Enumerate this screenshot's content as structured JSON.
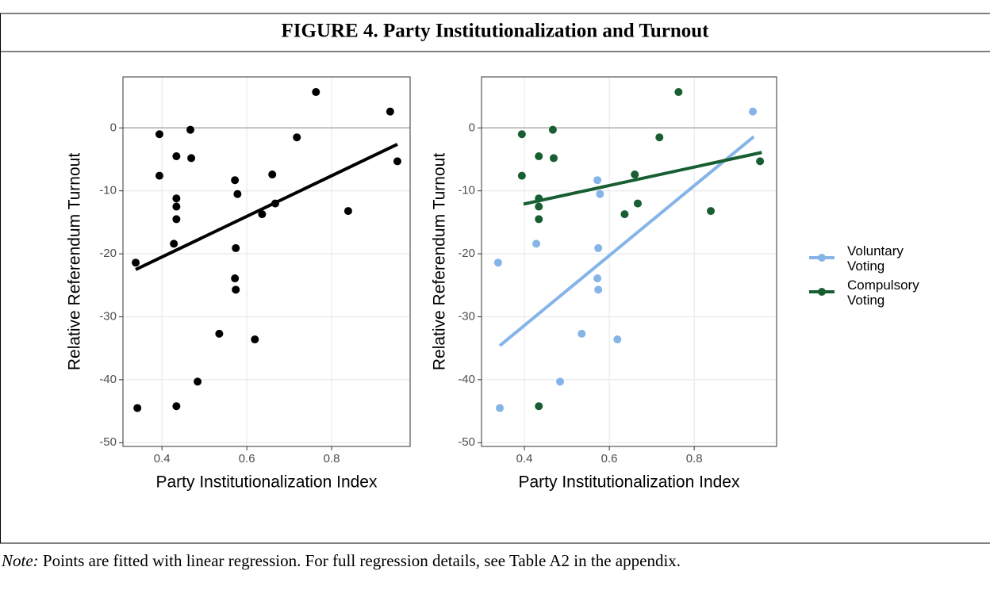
{
  "title": "FIGURE 4. Party Institutionalization and Turnout",
  "note_label": "Note:",
  "note": "Points are fitted with linear regression. For full regression details, see Table A2 in the appendix.",
  "chart_data": [
    {
      "type": "scatter",
      "x_label": "Party Institutionalization Index",
      "y_label": "Relative Referendum Turnout",
      "xlim": [
        0.308,
        0.985
      ],
      "ylim": [
        -50.6,
        8.1
      ],
      "xticks": [
        0.4,
        0.6,
        0.8
      ],
      "yticks": [
        0,
        -10,
        -20,
        -30,
        -40,
        -50
      ],
      "grid": true,
      "hline": 0,
      "series": [
        {
          "color": "#000000",
          "x": [
            0.338,
            0.342,
            0.394,
            0.394,
            0.467,
            0.469,
            0.434,
            0.434,
            0.434,
            0.434,
            0.428,
            0.434,
            0.484,
            0.535,
            0.572,
            0.578,
            0.574,
            0.572,
            0.574,
            0.619,
            0.636,
            0.66,
            0.667,
            0.718,
            0.763,
            0.839,
            0.938,
            0.955
          ],
          "values": [
            -21.4,
            -44.5,
            -1.0,
            -7.6,
            -0.3,
            -4.8,
            -4.5,
            -11.2,
            -12.5,
            -14.5,
            -18.4,
            -44.2,
            -40.3,
            -32.7,
            -8.3,
            -10.5,
            -19.1,
            -23.9,
            -25.7,
            -33.6,
            -13.7,
            -7.4,
            -12.0,
            -1.5,
            5.7,
            -13.2,
            2.6,
            -5.3
          ],
          "fit": {
            "x": [
              0.338,
              0.955
            ],
            "values": [
              -22.5,
              -2.6
            ]
          }
        }
      ]
    },
    {
      "type": "scatter",
      "x_label": "Party Institutionalization Index",
      "y_label": "Relative Referendum Turnout",
      "xlim": [
        0.299,
        0.994
      ],
      "ylim": [
        -50.6,
        8.1
      ],
      "xticks": [
        0.4,
        0.6,
        0.8
      ],
      "yticks": [
        0,
        -10,
        -20,
        -30,
        -40,
        -50
      ],
      "grid": true,
      "hline": 0,
      "legend": "right",
      "series": [
        {
          "name": "Voluntary Voting",
          "color": "#85b4e8",
          "x": [
            0.338,
            0.342,
            0.428,
            0.572,
            0.578,
            0.574,
            0.572,
            0.574,
            0.484,
            0.535,
            0.619,
            0.938
          ],
          "values": [
            -21.4,
            -44.5,
            -18.4,
            -8.3,
            -10.5,
            -19.1,
            -23.9,
            -25.7,
            -40.3,
            -32.7,
            -33.6,
            2.6
          ],
          "fit": {
            "x": [
              0.342,
              0.94
            ],
            "values": [
              -34.6,
              -1.4
            ]
          }
        },
        {
          "name": "Compulsory Voting",
          "color": "#175e32",
          "x": [
            0.394,
            0.394,
            0.467,
            0.469,
            0.434,
            0.434,
            0.434,
            0.434,
            0.434,
            0.636,
            0.66,
            0.667,
            0.718,
            0.763,
            0.839,
            0.955
          ],
          "values": [
            -1.0,
            -7.6,
            -0.3,
            -4.8,
            -4.5,
            -11.2,
            -12.5,
            -14.5,
            -44.2,
            -13.7,
            -7.4,
            -12.0,
            -1.5,
            5.7,
            -13.2,
            -5.3
          ],
          "fit": {
            "x": [
              0.398,
              0.959
            ],
            "values": [
              -12.1,
              -3.9
            ]
          }
        }
      ]
    }
  ]
}
